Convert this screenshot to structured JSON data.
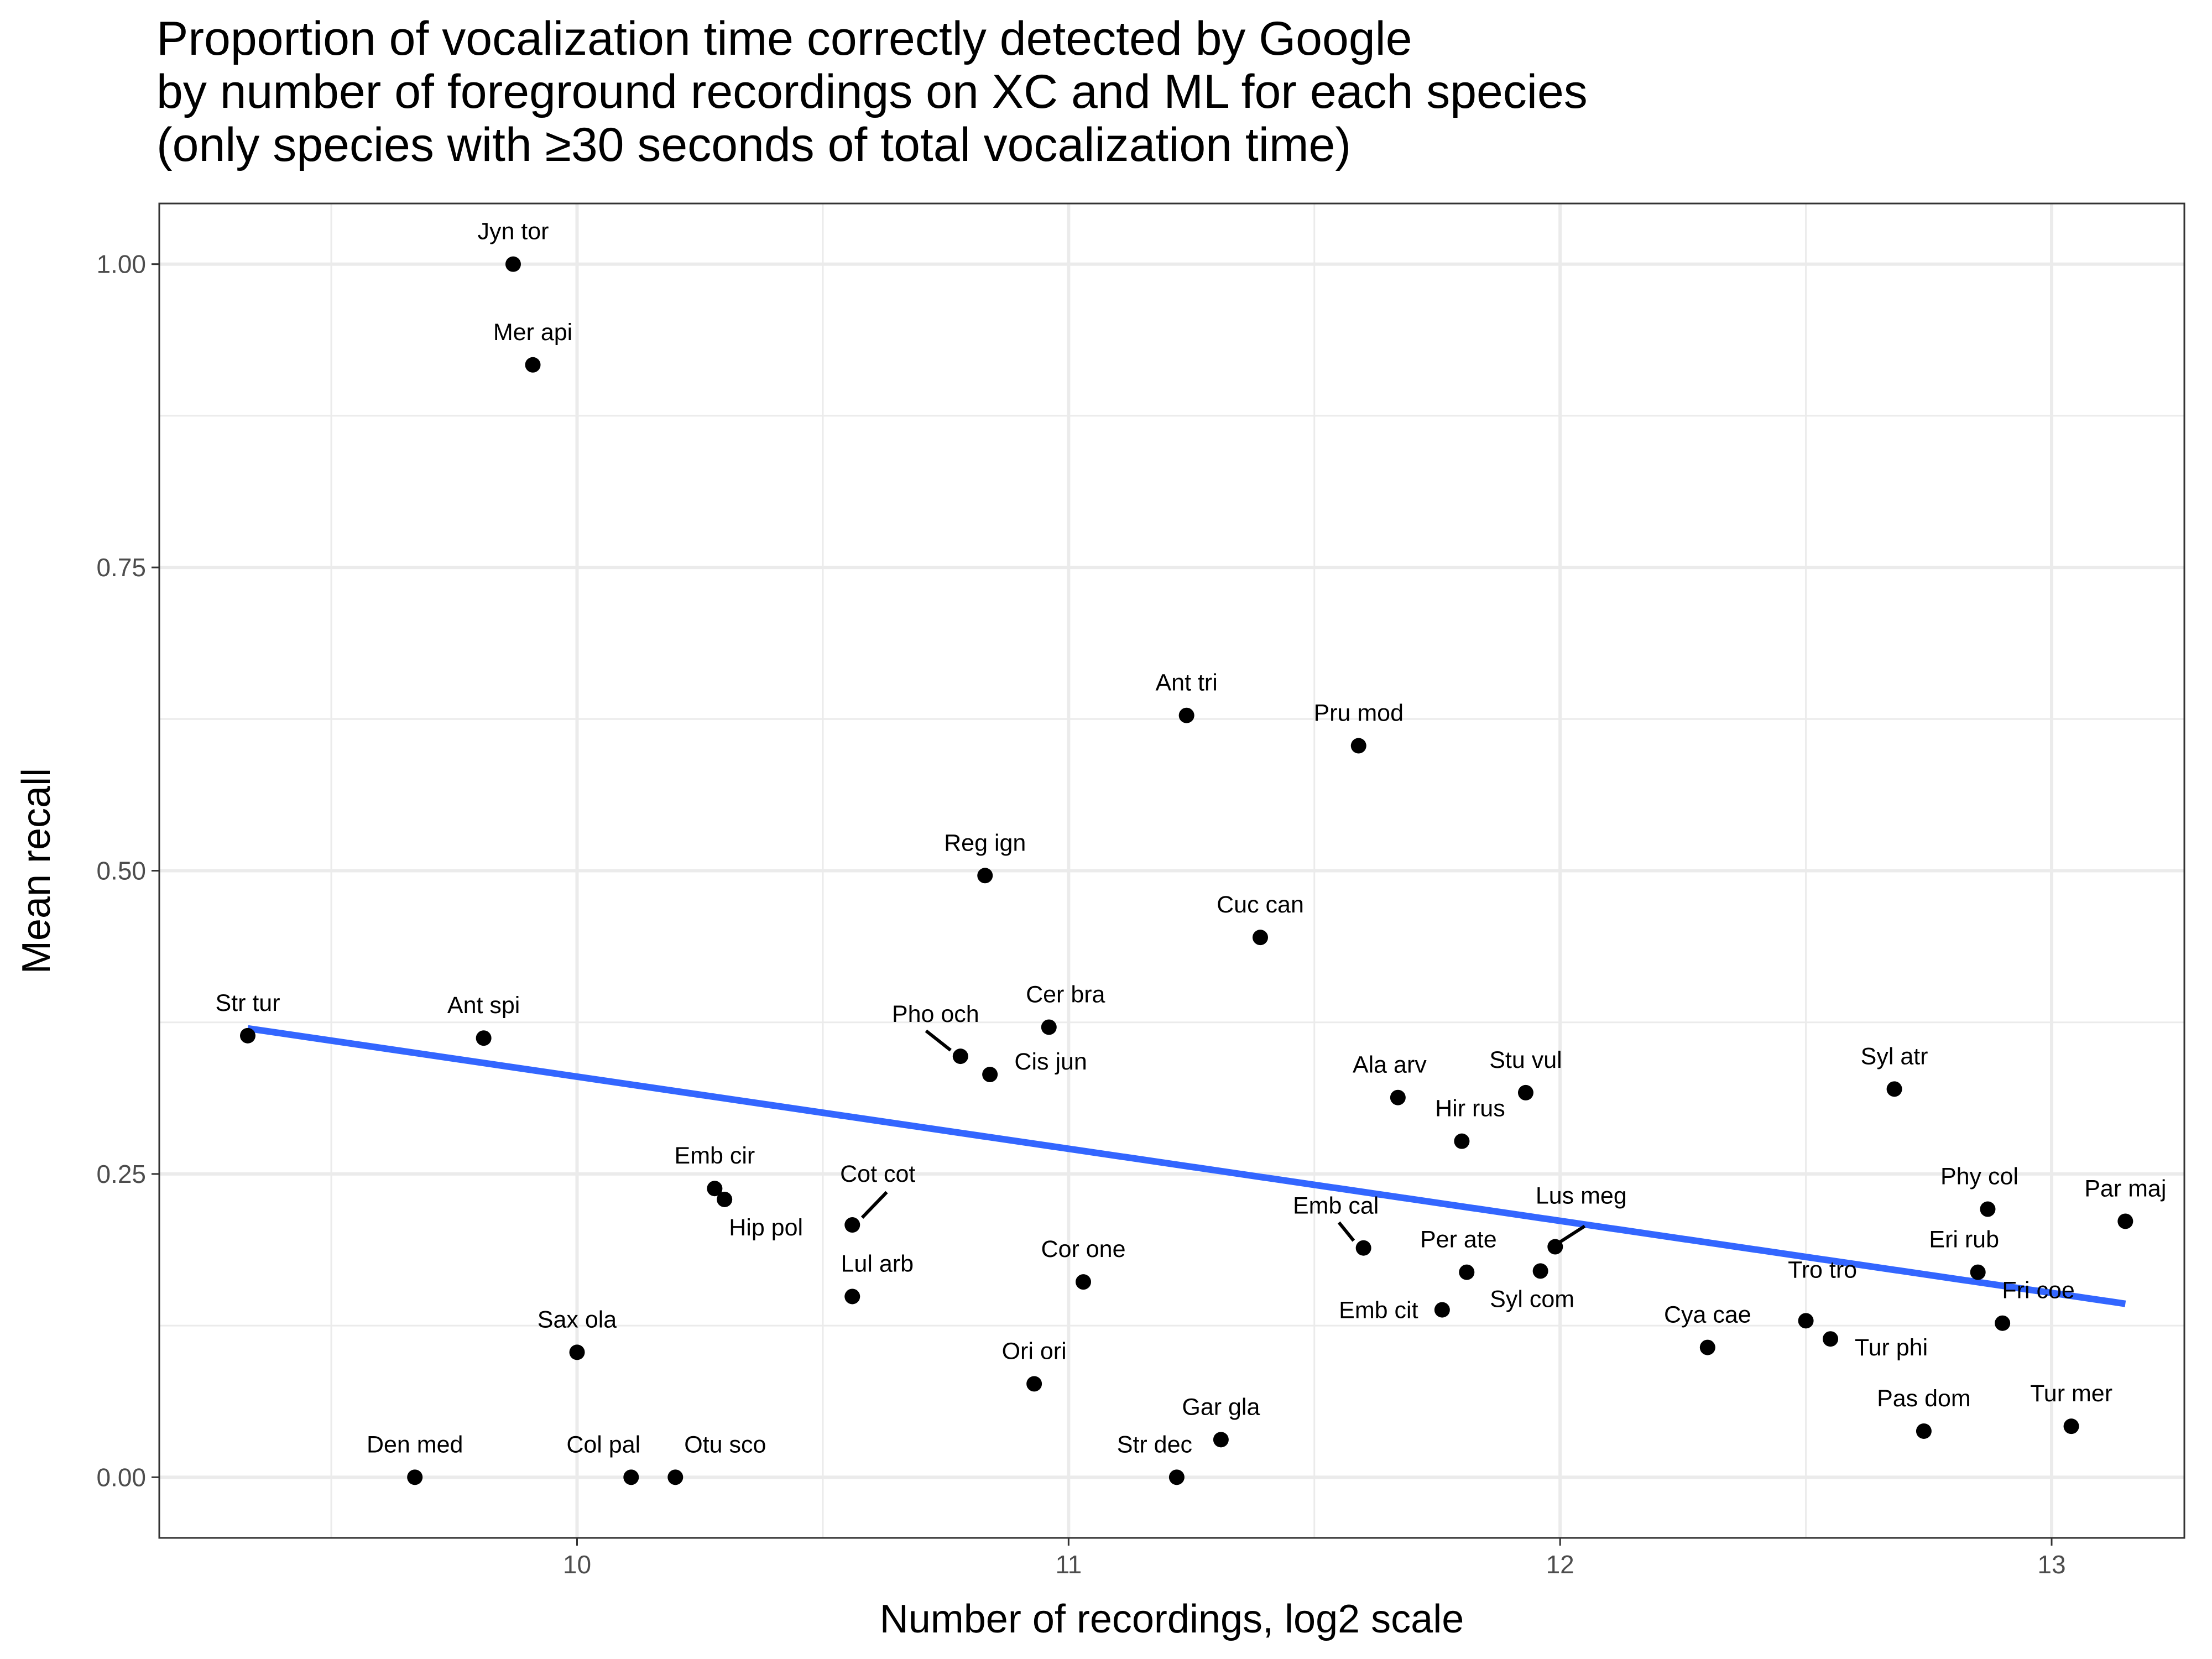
{
  "chart_data": {
    "type": "scatter",
    "title_lines": [
      "Proportion of vocalization time correctly detected by Google",
      "by number of foreground recordings on XC and ML for each species",
      "(only species with ≥30 seconds of total vocalization time)"
    ],
    "xlabel": "Number of recordings, log2 scale",
    "ylabel": "Mean recall",
    "xlim": [
      9.15,
      13.27
    ],
    "ylim": [
      -0.05,
      1.05
    ],
    "x_ticks": [
      10,
      11,
      12,
      13
    ],
    "x_tick_labels": [
      "10",
      "11",
      "12",
      "13"
    ],
    "y_ticks": [
      0,
      0.25,
      0.5,
      0.75,
      1.0
    ],
    "y_tick_labels": [
      "0.00",
      "0.25",
      "0.50",
      "0.75",
      "1.00"
    ],
    "grid": true,
    "colors": {
      "points": "#000000",
      "trend_line": "#3366ff",
      "grid": "#ebebeb",
      "panel_border": "#333333"
    },
    "trend_line": {
      "x": [
        9.33,
        13.15
      ],
      "y": [
        0.37,
        0.143
      ]
    },
    "points": [
      {
        "label": "Jyn tor",
        "x": 9.87,
        "y": 1.0
      },
      {
        "label": "Mer api",
        "x": 9.91,
        "y": 0.917
      },
      {
        "label": "Ant tri",
        "x": 11.24,
        "y": 0.628
      },
      {
        "label": "Pru mod",
        "x": 11.59,
        "y": 0.603
      },
      {
        "label": "Reg ign",
        "x": 10.83,
        "y": 0.496
      },
      {
        "label": "Cuc can",
        "x": 11.39,
        "y": 0.445
      },
      {
        "label": "Str tur",
        "x": 9.33,
        "y": 0.364
      },
      {
        "label": "Ant spi",
        "x": 9.81,
        "y": 0.362
      },
      {
        "label": "Cer bra",
        "x": 10.96,
        "y": 0.371
      },
      {
        "label": "Pho och",
        "x": 10.78,
        "y": 0.347
      },
      {
        "label": "Cis jun",
        "x": 10.84,
        "y": 0.332
      },
      {
        "label": "Ala arv",
        "x": 11.67,
        "y": 0.313
      },
      {
        "label": "Stu vul",
        "x": 11.93,
        "y": 0.317
      },
      {
        "label": "Syl atr",
        "x": 12.68,
        "y": 0.32
      },
      {
        "label": "Hir rus",
        "x": 11.8,
        "y": 0.277
      },
      {
        "label": "Emb cir",
        "x": 10.28,
        "y": 0.238
      },
      {
        "label": "Hip pol",
        "x": 10.3,
        "y": 0.229
      },
      {
        "label": "Cot cot",
        "x": 10.56,
        "y": 0.208
      },
      {
        "label": "Phy col",
        "x": 12.87,
        "y": 0.221
      },
      {
        "label": "Par maj",
        "x": 13.15,
        "y": 0.211
      },
      {
        "label": "Emb cal",
        "x": 11.6,
        "y": 0.189
      },
      {
        "label": "Lus meg",
        "x": 11.99,
        "y": 0.19
      },
      {
        "label": "Eri rub",
        "x": 12.85,
        "y": 0.169
      },
      {
        "label": "Per ate",
        "x": 11.81,
        "y": 0.169
      },
      {
        "label": "Syl com",
        "x": 11.96,
        "y": 0.17
      },
      {
        "label": "Cor one",
        "x": 11.03,
        "y": 0.161
      },
      {
        "label": "Lul arb",
        "x": 10.56,
        "y": 0.149
      },
      {
        "label": "Emb cit",
        "x": 11.76,
        "y": 0.138
      },
      {
        "label": "Tro tro",
        "x": 12.5,
        "y": 0.129
      },
      {
        "label": "Fri coe",
        "x": 12.9,
        "y": 0.127
      },
      {
        "label": "Tur phi",
        "x": 12.55,
        "y": 0.114
      },
      {
        "label": "Cya cae",
        "x": 12.3,
        "y": 0.107
      },
      {
        "label": "Sax ola",
        "x": 10.0,
        "y": 0.103
      },
      {
        "label": "Ori ori",
        "x": 10.93,
        "y": 0.077
      },
      {
        "label": "Gar gla",
        "x": 11.31,
        "y": 0.031
      },
      {
        "label": "Pas dom",
        "x": 12.74,
        "y": 0.038
      },
      {
        "label": "Tur mer",
        "x": 13.04,
        "y": 0.042
      },
      {
        "label": "Den med",
        "x": 9.67,
        "y": 0.0
      },
      {
        "label": "Col pal",
        "x": 10.11,
        "y": 0.0
      },
      {
        "label": "Otu sco",
        "x": 10.2,
        "y": 0.0
      },
      {
        "label": "Str dec",
        "x": 11.22,
        "y": 0.0
      }
    ]
  }
}
